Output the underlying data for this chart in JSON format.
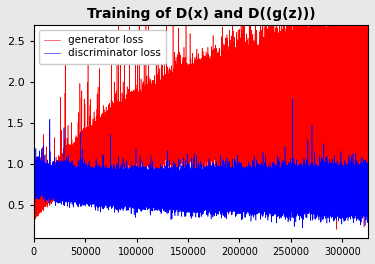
{
  "title": "Training of D(x) and D((g(z)))",
  "legend_labels": [
    "generator loss",
    "discriminator loss"
  ],
  "gen_color": "#ff0000",
  "disc_color": "#0000ff",
  "xlim": [
    0,
    325000
  ],
  "ylim": [
    0.1,
    2.7
  ],
  "xticks": [
    0,
    50000,
    100000,
    150000,
    200000,
    250000,
    300000
  ],
  "yticks": [
    0.5,
    1.0,
    1.5,
    2.0,
    2.5
  ],
  "n_points": 325000,
  "seed": 12345,
  "bg_color": "#ffffff",
  "outer_bg": "#e8e8e8",
  "title_fontsize": 10
}
